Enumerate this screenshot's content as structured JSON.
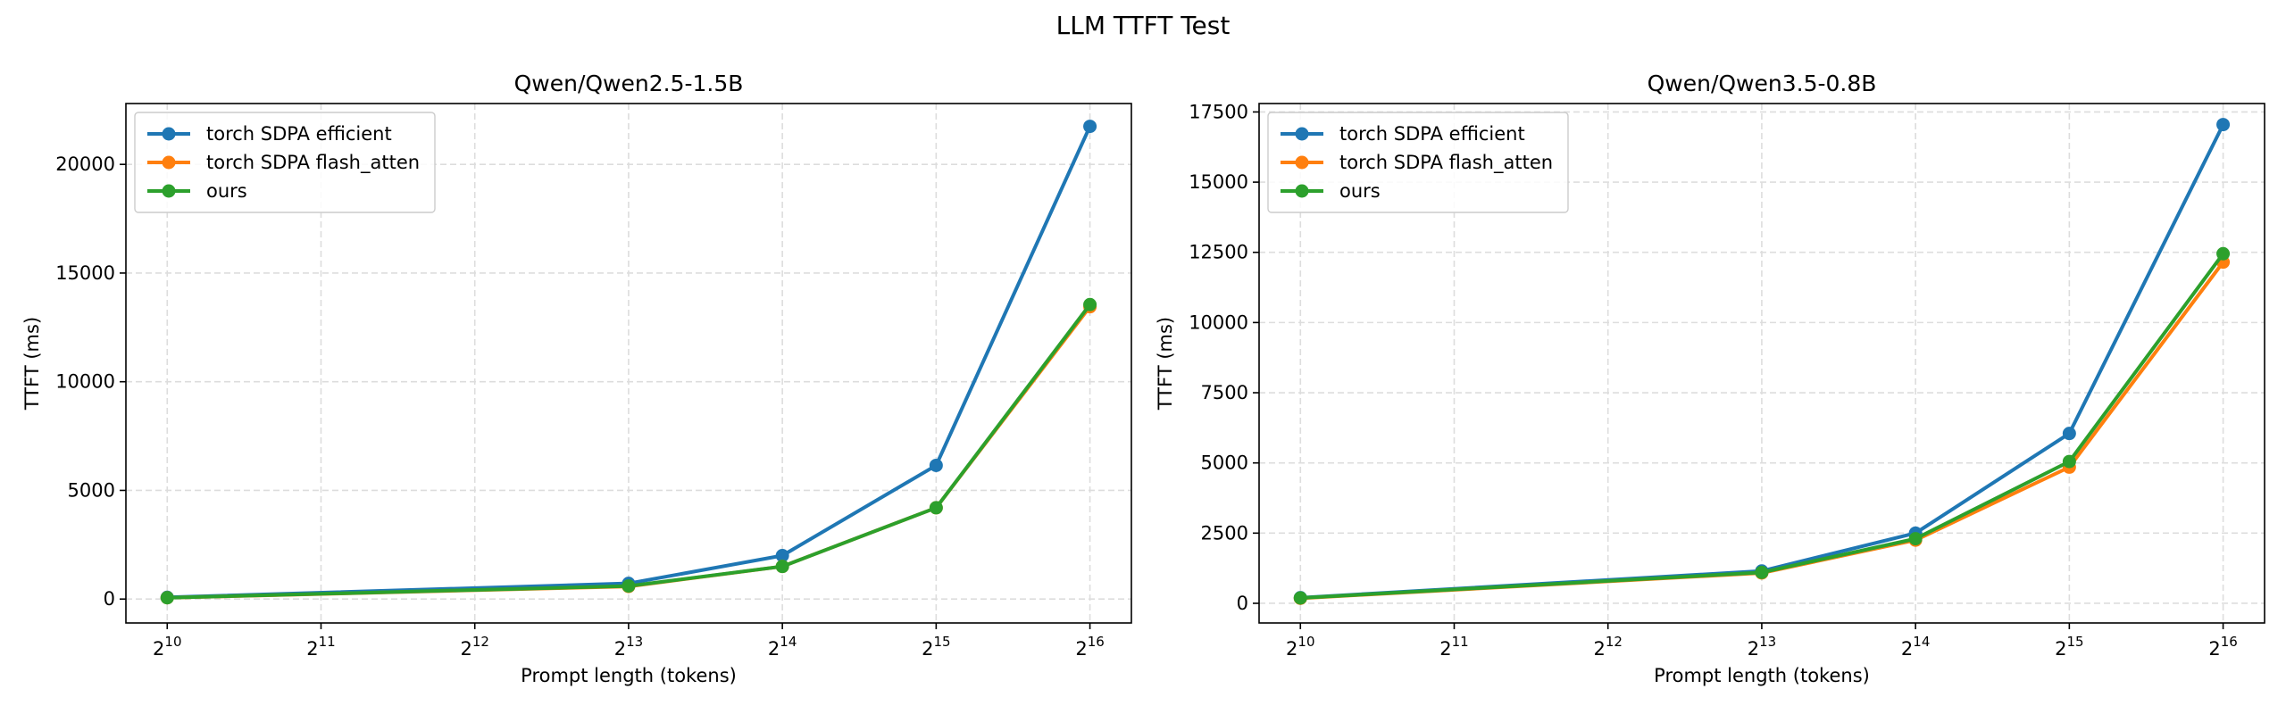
{
  "figure": {
    "title": "LLM TTFT Test"
  },
  "colors": {
    "series": [
      "#1f77b4",
      "#ff7f0e",
      "#2ca02c"
    ],
    "grid": "#dddddd",
    "axis": "#000000"
  },
  "chart_data": [
    {
      "type": "line",
      "title": "Qwen/Qwen2.5-1.5B",
      "xlabel": "Prompt length (tokens)",
      "ylabel": "TTFT (ms)",
      "xscale": "log2",
      "x": [
        1024,
        8192,
        16384,
        32768,
        65536
      ],
      "xticks": [
        1024,
        2048,
        4096,
        8192,
        16384,
        32768,
        65536
      ],
      "xtick_labels": [
        {
          "base": "2",
          "exp": "10"
        },
        {
          "base": "2",
          "exp": "11"
        },
        {
          "base": "2",
          "exp": "12"
        },
        {
          "base": "2",
          "exp": "13"
        },
        {
          "base": "2",
          "exp": "14"
        },
        {
          "base": "2",
          "exp": "15"
        },
        {
          "base": "2",
          "exp": "16"
        }
      ],
      "xlim": [
        850,
        79000
      ],
      "ylim": [
        -1100,
        22800
      ],
      "yticks": [
        0,
        5000,
        10000,
        15000,
        20000
      ],
      "ytick_labels": [
        "0",
        "5000",
        "10000",
        "15000",
        "20000"
      ],
      "grid": true,
      "legend_loc": "top-left",
      "series": [
        {
          "name": "torch SDPA efficient",
          "values": [
            80,
            720,
            2000,
            6150,
            21750
          ]
        },
        {
          "name": "torch SDPA flash_atten",
          "values": [
            60,
            580,
            1500,
            4200,
            13450
          ]
        },
        {
          "name": "ours",
          "values": [
            60,
            600,
            1500,
            4200,
            13550
          ]
        }
      ]
    },
    {
      "type": "line",
      "title": "Qwen/Qwen3.5-0.8B",
      "xlabel": "Prompt length (tokens)",
      "ylabel": "TTFT (ms)",
      "xscale": "log2",
      "x": [
        1024,
        8192,
        16384,
        32768,
        65536
      ],
      "xticks": [
        1024,
        2048,
        4096,
        8192,
        16384,
        32768,
        65536
      ],
      "xtick_labels": [
        {
          "base": "2",
          "exp": "10"
        },
        {
          "base": "2",
          "exp": "11"
        },
        {
          "base": "2",
          "exp": "12"
        },
        {
          "base": "2",
          "exp": "13"
        },
        {
          "base": "2",
          "exp": "14"
        },
        {
          "base": "2",
          "exp": "15"
        },
        {
          "base": "2",
          "exp": "16"
        }
      ],
      "xlim": [
        850,
        79000
      ],
      "ylim": [
        -700,
        17800
      ],
      "yticks": [
        0,
        2500,
        5000,
        7500,
        10000,
        12500,
        15000,
        17500
      ],
      "ytick_labels": [
        "0",
        "2500",
        "5000",
        "7500",
        "10000",
        "12500",
        "15000",
        "17500"
      ],
      "grid": true,
      "legend_loc": "top-left",
      "series": [
        {
          "name": "torch SDPA efficient",
          "values": [
            200,
            1150,
            2500,
            6050,
            17050
          ]
        },
        {
          "name": "torch SDPA flash_atten",
          "values": [
            180,
            1080,
            2250,
            4850,
            12150
          ]
        },
        {
          "name": "ours",
          "values": [
            190,
            1100,
            2300,
            5050,
            12450
          ]
        }
      ]
    }
  ]
}
